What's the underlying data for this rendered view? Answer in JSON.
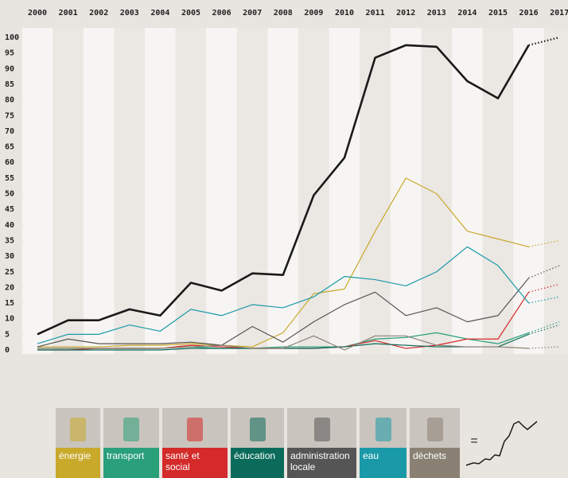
{
  "chart_data": {
    "type": "line",
    "categories": [
      "2000",
      "2001",
      "2002",
      "2003",
      "2004",
      "2005",
      "2006",
      "2007",
      "2008",
      "2009",
      "2010",
      "2011",
      "2012",
      "2013",
      "2014",
      "2015",
      "2016",
      "2017"
    ],
    "ylim": [
      0,
      100
    ],
    "yticks": [
      0,
      5,
      10,
      15,
      20,
      25,
      30,
      35,
      40,
      45,
      50,
      55,
      60,
      65,
      70,
      75,
      80,
      85,
      90,
      95,
      100
    ],
    "last_segment_dotted": true,
    "series": [
      {
        "name": "=",
        "color": "#1a1a1a",
        "values": [
          5,
          9.5,
          9.5,
          13,
          11,
          21.5,
          19,
          24.5,
          24,
          49.5,
          61.5,
          93.5,
          97.5,
          97,
          86,
          80.5,
          97.5,
          100
        ]
      },
      {
        "name": "énergie",
        "color": "#c8a92a",
        "values": [
          1,
          1,
          1,
          1.5,
          1.5,
          2,
          1.5,
          1,
          5.5,
          18,
          19.5,
          38,
          55,
          50,
          38,
          35.5,
          33,
          35
        ]
      },
      {
        "name": "transport",
        "color": "#2aa07a",
        "values": [
          0.5,
          0.5,
          0.5,
          0.5,
          0.5,
          1,
          0.5,
          0.5,
          1,
          1,
          1,
          3.5,
          4,
          5.5,
          3.5,
          2,
          5.5,
          9
        ]
      },
      {
        "name": "santé et social",
        "color": "#d42a2a",
        "values": [
          0,
          0,
          0.5,
          0.5,
          0.5,
          1.5,
          1,
          0.5,
          0.5,
          0.5,
          1,
          3,
          0.5,
          1.5,
          3.5,
          3.5,
          18.5,
          21
        ]
      },
      {
        "name": "éducation",
        "color": "#0b6b5a",
        "values": [
          0,
          0,
          0,
          0,
          0,
          0.5,
          0.5,
          0.5,
          0.5,
          0.5,
          1,
          2,
          1.5,
          1,
          1,
          1,
          5,
          8
        ]
      },
      {
        "name": "administration locale",
        "color": "#555555",
        "values": [
          1,
          3.5,
          2,
          2,
          2,
          2.5,
          1.5,
          7.5,
          2.5,
          9,
          14.5,
          18.5,
          11,
          13.5,
          9,
          11,
          23,
          27
        ]
      },
      {
        "name": "eau",
        "color": "#1a9aa8",
        "values": [
          2,
          5,
          5,
          8,
          6,
          13,
          11,
          14.5,
          13.5,
          17,
          23.5,
          22.5,
          20.5,
          25,
          33,
          27,
          15,
          17
        ]
      },
      {
        "name": "déchets",
        "color": "#8a8174",
        "values": [
          0.5,
          0.5,
          0.5,
          0.5,
          0.5,
          1,
          1.5,
          0.5,
          0.5,
          4.5,
          0,
          4.5,
          4.5,
          1.5,
          1,
          1,
          0.5,
          1
        ]
      }
    ]
  }
}
